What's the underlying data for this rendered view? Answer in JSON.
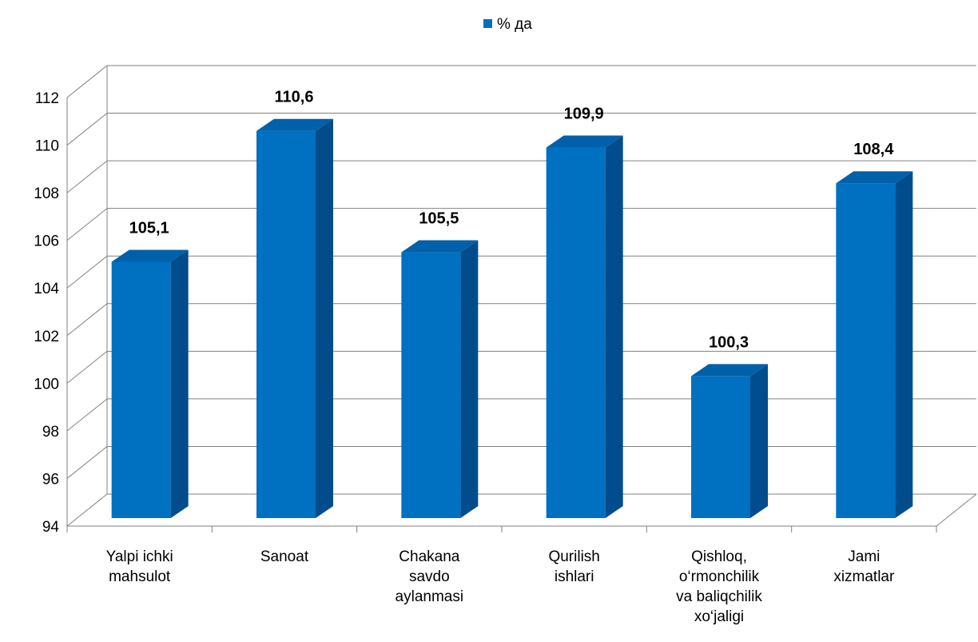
{
  "chart_data": {
    "type": "bar",
    "title": "",
    "xlabel": "",
    "ylabel": "",
    "categories": [
      [
        "Yalpi ichki",
        "mahsulot"
      ],
      [
        "Sanoat"
      ],
      [
        "Chakana",
        "savdo",
        "aylanmasi"
      ],
      [
        "Qurilish",
        "ishlari"
      ],
      [
        "Qishloq,",
        "o‘rmonchilik",
        "va  baliqchilik",
        "xo‘jaligi"
      ],
      [
        "Jami",
        "xizmatlar"
      ]
    ],
    "series": [
      {
        "name": "% да",
        "values": [
          105.1,
          110.6,
          105.5,
          109.9,
          100.3,
          108.4
        ]
      }
    ],
    "value_labels": [
      "105,1",
      "110,6",
      "105,5",
      "109,9",
      "100,3",
      "108,4"
    ],
    "ylim": [
      94,
      112
    ],
    "yticks": [
      "94",
      "96",
      "98",
      "100",
      "102",
      "104",
      "106",
      "108",
      "110",
      "112"
    ],
    "grid": true,
    "legend_position": "top-center",
    "style": "3d-column",
    "colors": {
      "bar_front": "#0070C0",
      "bar_side": "#004C8C",
      "bar_top": "#0060AA",
      "grid": "#808080"
    }
  }
}
